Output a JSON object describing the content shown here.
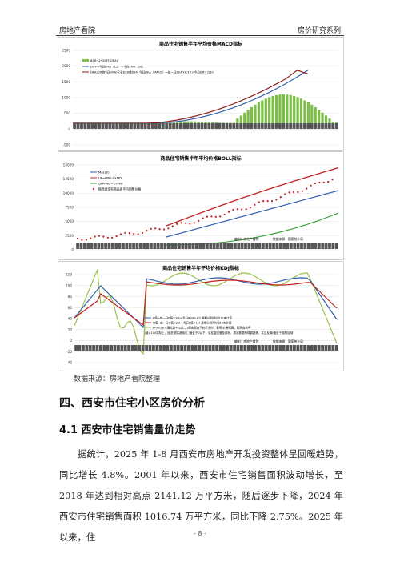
{
  "header": {
    "left": "房地产看院",
    "right": "房价研究系列"
  },
  "charts": [
    {
      "title": "商品住宅销售半年平均价格MACD指标",
      "legend": [
        "BAR=2*(DIFF-DEA)",
        "DIFF=今日EMA（12）－今日EMA（26）",
        "DEA(DIF的9日EMA)又名DEA或DEM 今日DEA（MACD）=前一日DEA×8/10＋今日DIF×2/10"
      ],
      "y_ticks": [
        "2500",
        "2000",
        "1500",
        "1000",
        "500",
        "0",
        "-500"
      ]
    },
    {
      "title": "商品住宅销售半年平均价格BOLL指标",
      "legend": [
        "MA(20)",
        "UP=MB+2×MD",
        "DN=MB－2×MD",
        "陕西省住宅商品房平均销售价格"
      ],
      "y_ticks": [
        "15000",
        "12500",
        "10000",
        "7500",
        "5000",
        "2500",
        "0"
      ],
      "notes": [
        "编制：房地产看院",
        "数据来源：国家统计局"
      ]
    },
    {
      "title": "商品住宅销售半年平均价格KDJ指标",
      "legend": [
        "K值=前一日K值×2/3＋当日RSV×1/3 周期分别用6和12来计算",
        "D值=前一日D值×2/3＋当日K值×1/3 周期分别用6和12来计算",
        "J=3K-2D K值位处40以上，J值出现向下转折点时，表明 价格调整，是卖出信号"
      ],
      "extra": "J值>100实际上，J值在超买超卖区 J值处于0以下，或反复回落至前轨，表示数据有转弱趋势，并且反弹J值处于强势区域",
      "y_ticks": [
        "120",
        "100",
        "80",
        "60",
        "40",
        "20",
        "0",
        "-20",
        "-40"
      ],
      "notes": [
        "编制：房地产看院",
        "数据来源：国家统计局"
      ]
    }
  ],
  "source_note": "数据来源：房地产看院整理",
  "section_heading": "四、西安市住宅小区房价分析",
  "subsection_heading": "4.1 西安市住宅销售量价走势",
  "paragraph": "据统计，2025 年 1-8 月西安市房地产开发投资整体呈回暖趋势，同比增长 4.8%。2001 年以来，西安市住宅销售面积波动增长，至 2018 年达到相对高点 2141.12 万平方米，随后逐步下降，2024 年西安市住宅销售面积 1016.74 万平方米，同比下降 2.75%。2025 年以来，住",
  "page_number": "- 8 -",
  "colors": {
    "green": "#7cbf46",
    "blue": "#2f5fae",
    "red": "#c0201f",
    "darkred": "#8b1a1a",
    "grid": "#e2e2e2"
  }
}
